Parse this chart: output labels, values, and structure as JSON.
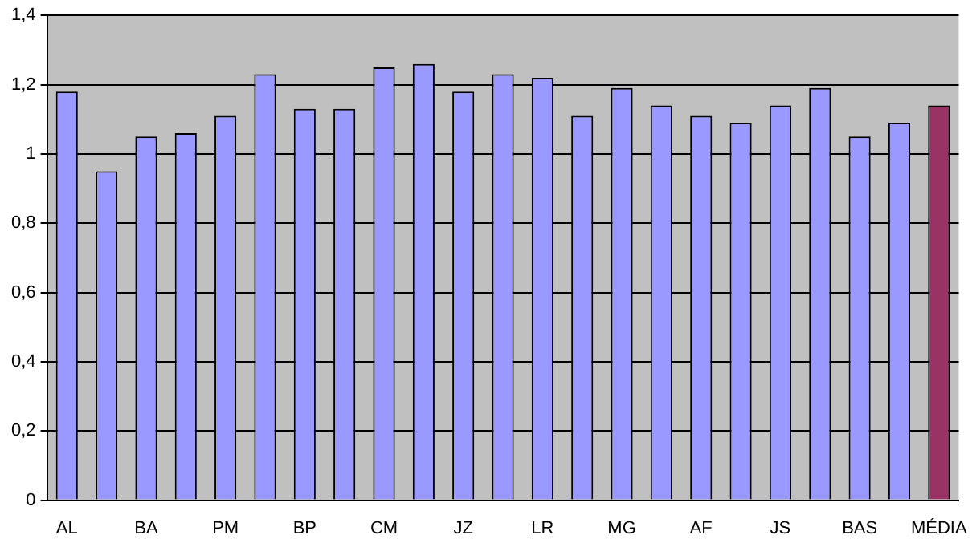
{
  "chart_data": {
    "type": "bar",
    "categories": [
      "AL",
      null,
      "BA",
      null,
      "PM",
      null,
      "BP",
      null,
      "CM",
      null,
      "JZ",
      null,
      "LR",
      null,
      "MG",
      null,
      "AF",
      null,
      "JS",
      null,
      "BAS",
      null,
      "MÉDIA"
    ],
    "values": [
      1.18,
      0.95,
      1.05,
      1.06,
      1.11,
      1.23,
      1.13,
      1.13,
      1.25,
      1.26,
      1.18,
      1.23,
      1.22,
      1.11,
      1.19,
      1.14,
      1.11,
      1.09,
      1.14,
      1.19,
      1.05,
      1.09,
      1.14
    ],
    "colors": [
      "#9999ff",
      "#9999ff",
      "#9999ff",
      "#9999ff",
      "#9999ff",
      "#9999ff",
      "#9999ff",
      "#9999ff",
      "#9999ff",
      "#9999ff",
      "#9999ff",
      "#9999ff",
      "#9999ff",
      "#9999ff",
      "#9999ff",
      "#9999ff",
      "#9999ff",
      "#9999ff",
      "#9999ff",
      "#9999ff",
      "#9999ff",
      "#9999ff",
      "#993366"
    ],
    "ylim": [
      0,
      1.4
    ],
    "yticks": [
      0,
      {
        "value": 0.2,
        "label": "0,2"
      },
      {
        "value": 0.4,
        "label": "0,4"
      },
      {
        "value": 0.6,
        "label": "0,6"
      },
      {
        "value": 0.8,
        "label": "0,8"
      },
      1,
      {
        "value": 1.2,
        "label": "1,2"
      },
      {
        "value": 1.4,
        "label": "1,4"
      }
    ],
    "grid": "y",
    "legend": false
  }
}
